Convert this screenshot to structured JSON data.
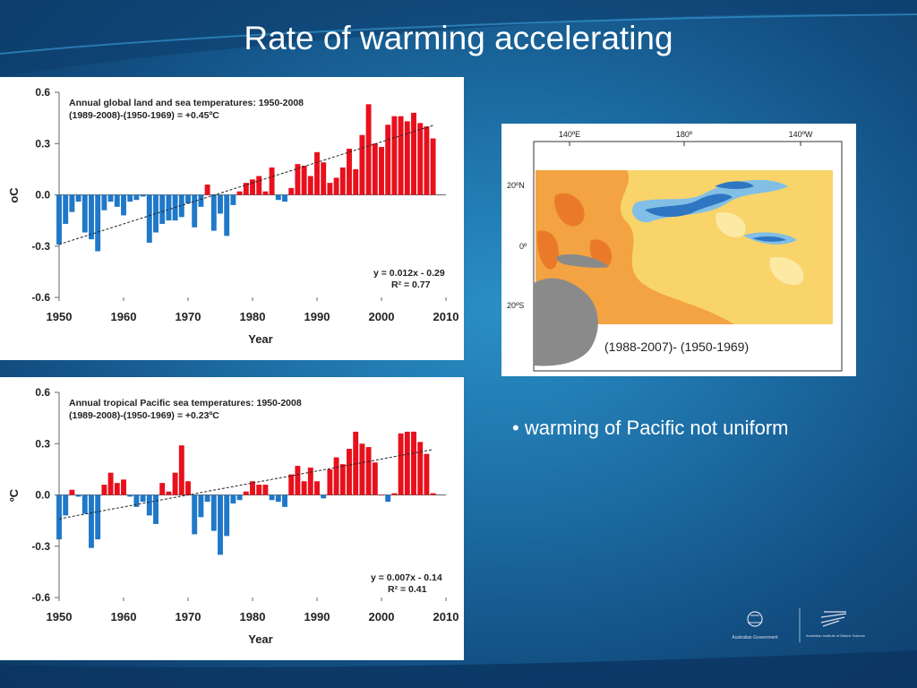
{
  "title": "Rate of warming accelerating",
  "bullet": "• warming of Pacific not uniform",
  "colors": {
    "warm": "#e8101c",
    "cool": "#1f78c8"
  },
  "map": {
    "caption": "(1988-2007)- (1950-1969)",
    "lon_labels": [
      "140ºE",
      "180º",
      "140ºW"
    ],
    "lat_labels": [
      "20ºN",
      "0º",
      "20ºS"
    ]
  },
  "logos": {
    "left_text": "Australian Government",
    "right_text": "Australian Institute of Marine Science"
  },
  "chart_data": [
    {
      "type": "bar",
      "title": "Annual global land and sea temperatures: 1950-2008",
      "subtitle": "(1989-2008)-(1950-1969) = +0.45ºC",
      "xlabel": "Year",
      "ylabel": "oC",
      "xlim": [
        1950,
        2010
      ],
      "ylim": [
        -0.6,
        0.6
      ],
      "xticks": [
        1950,
        1960,
        1970,
        1980,
        1990,
        2000,
        2010
      ],
      "yticks": [
        0.6,
        0.3,
        0.0,
        -0.3,
        -0.6
      ],
      "ytick_labels": [
        "0.6",
        "0.3",
        "0.0",
        "-0.3",
        "-0.6"
      ],
      "trend_label": "y = 0.012x - 0.29",
      "r2_label": "R² = 0.77",
      "trend": {
        "slope": 0.012,
        "intercept": -0.29
      },
      "x": [
        1950,
        1951,
        1952,
        1953,
        1954,
        1955,
        1956,
        1957,
        1958,
        1959,
        1960,
        1961,
        1962,
        1963,
        1964,
        1965,
        1966,
        1967,
        1968,
        1969,
        1970,
        1971,
        1972,
        1973,
        1974,
        1975,
        1976,
        1977,
        1978,
        1979,
        1980,
        1981,
        1982,
        1983,
        1984,
        1985,
        1986,
        1987,
        1988,
        1989,
        1990,
        1991,
        1992,
        1993,
        1994,
        1995,
        1996,
        1997,
        1998,
        1999,
        2000,
        2001,
        2002,
        2003,
        2004,
        2005,
        2006,
        2007,
        2008
      ],
      "values": [
        -0.29,
        -0.17,
        -0.1,
        -0.04,
        -0.22,
        -0.26,
        -0.33,
        -0.09,
        -0.04,
        -0.07,
        -0.12,
        -0.04,
        -0.03,
        -0.01,
        -0.28,
        -0.22,
        -0.17,
        -0.15,
        -0.15,
        -0.13,
        -0.05,
        -0.19,
        -0.07,
        0.06,
        -0.21,
        -0.11,
        -0.24,
        -0.06,
        0.02,
        0.07,
        0.09,
        0.11,
        0.02,
        0.16,
        -0.03,
        -0.04,
        0.04,
        0.18,
        0.17,
        0.11,
        0.25,
        0.19,
        0.07,
        0.1,
        0.16,
        0.27,
        0.15,
        0.35,
        0.53,
        0.3,
        0.28,
        0.41,
        0.46,
        0.46,
        0.43,
        0.48,
        0.42,
        0.4,
        0.33
      ]
    },
    {
      "type": "bar",
      "title": "Annual tropical Pacific sea temperatures: 1950-2008",
      "subtitle": "(1989-2008)-(1950-1969) = +0.23ºC",
      "xlabel": "Year",
      "ylabel": "ºC",
      "xlim": [
        1950,
        2010
      ],
      "ylim": [
        -0.6,
        0.6
      ],
      "xticks": [
        1950,
        1960,
        1970,
        1980,
        1990,
        2000,
        2010
      ],
      "yticks": [
        0.6,
        0.3,
        0.0,
        -0.3,
        -0.6
      ],
      "ytick_labels": [
        "0.6",
        "0.3",
        "0.0",
        "-0.3",
        "-0.6"
      ],
      "trend_label": "y = 0.007x - 0.14",
      "r2_label": "R² = 0.41",
      "trend": {
        "slope": 0.007,
        "intercept": -0.14
      },
      "x": [
        1950,
        1951,
        1952,
        1953,
        1954,
        1955,
        1956,
        1957,
        1958,
        1959,
        1960,
        1961,
        1962,
        1963,
        1964,
        1965,
        1966,
        1967,
        1968,
        1969,
        1970,
        1971,
        1972,
        1973,
        1974,
        1975,
        1976,
        1977,
        1978,
        1979,
        1980,
        1981,
        1982,
        1983,
        1984,
        1985,
        1986,
        1987,
        1988,
        1989,
        1990,
        1991,
        1992,
        1993,
        1994,
        1995,
        1996,
        1997,
        1998,
        1999,
        2000,
        2001,
        2002,
        2003,
        2004,
        2005,
        2006,
        2007,
        2008
      ],
      "values": [
        -0.26,
        -0.12,
        0.03,
        -0.01,
        -0.11,
        -0.31,
        -0.26,
        0.06,
        0.13,
        0.07,
        0.09,
        -0.01,
        -0.07,
        -0.04,
        -0.12,
        -0.17,
        0.07,
        0.02,
        0.13,
        0.29,
        0.08,
        -0.23,
        -0.13,
        -0.04,
        -0.21,
        -0.35,
        -0.24,
        -0.05,
        -0.03,
        0.02,
        0.08,
        0.06,
        0.06,
        -0.03,
        -0.04,
        -0.07,
        0.12,
        0.17,
        0.08,
        0.16,
        0.08,
        -0.02,
        0.15,
        0.22,
        0.18,
        0.27,
        0.37,
        0.3,
        0.28,
        0.19,
        0.0,
        -0.04,
        0.01,
        0.36,
        0.37,
        0.37,
        0.31,
        0.24,
        0.01
      ]
    }
  ]
}
